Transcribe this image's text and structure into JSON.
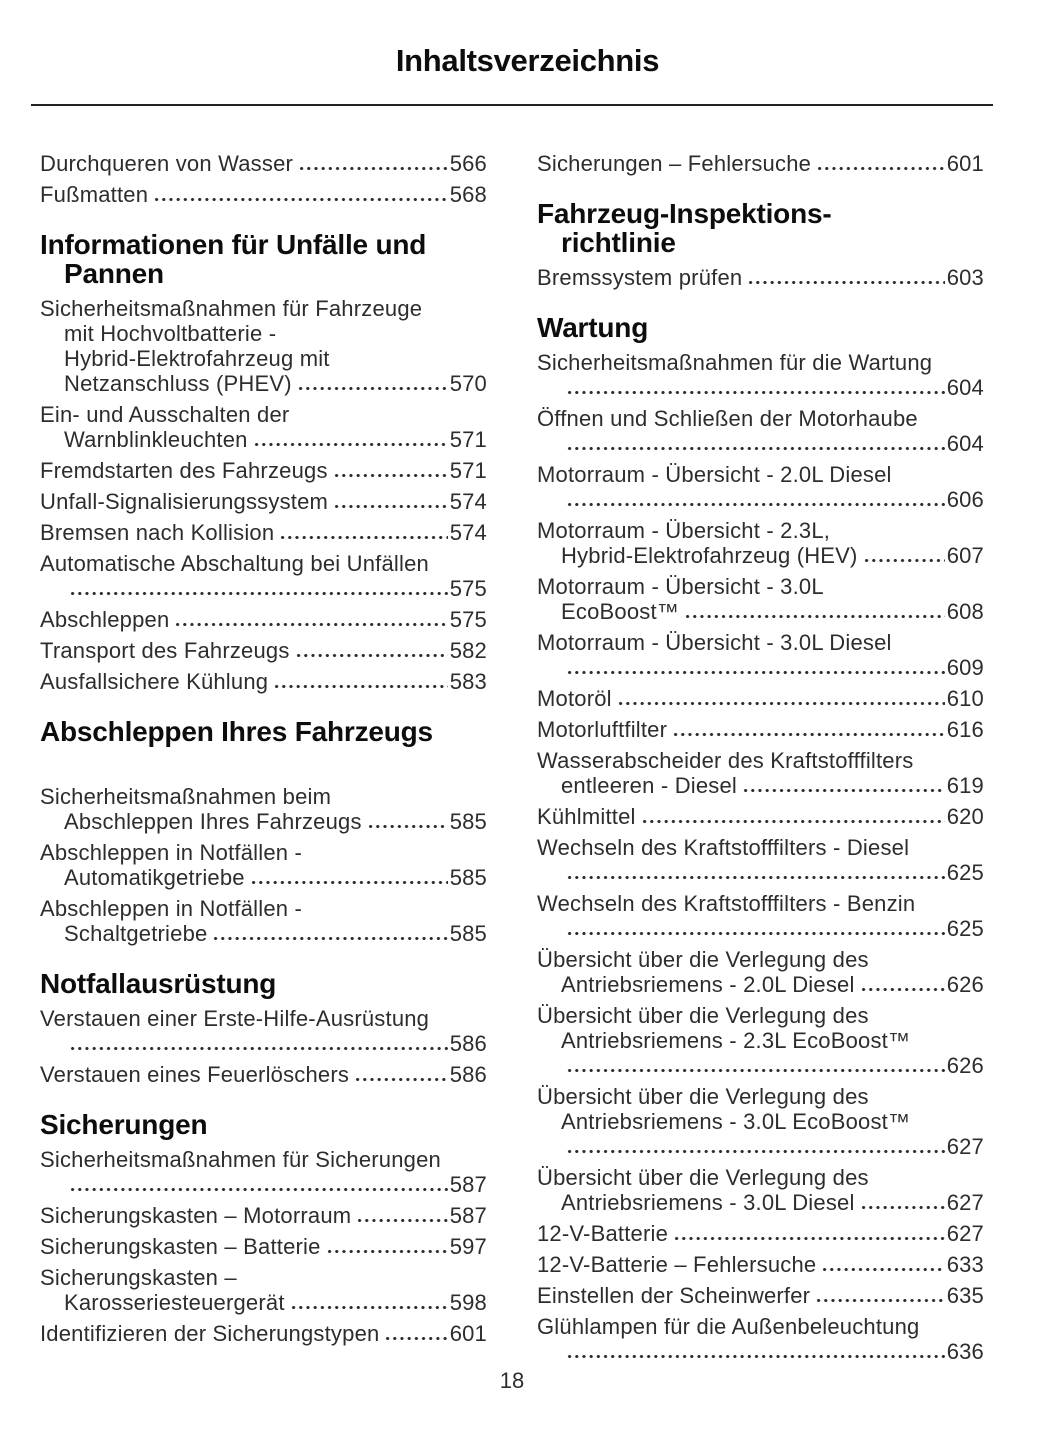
{
  "page": {
    "title": "Inhaltsverzeichnis",
    "page_number": "18"
  },
  "colors": {
    "text": "#2d2d2d",
    "heading": "#0d0d0d",
    "rule": "#222222",
    "background": "#ffffff"
  },
  "columns": {
    "left": [
      {
        "type": "entry",
        "lines": [
          "Durchqueren von Wasser"
        ],
        "page": "566"
      },
      {
        "type": "entry",
        "lines": [
          "Fußmatten"
        ],
        "page": "568"
      },
      {
        "type": "heading",
        "lines": [
          "Informationen für Unfälle und",
          "Pannen"
        ]
      },
      {
        "type": "entry",
        "lines": [
          "Sicherheitsmaßnahmen für Fahrzeuge",
          "mit Hochvoltbatterie -",
          "Hybrid-Elektrofahrzeug mit",
          "Netzanschluss (PHEV)"
        ],
        "page": "570"
      },
      {
        "type": "entry",
        "lines": [
          "Ein- und Ausschalten der",
          "Warnblinkleuchten"
        ],
        "page": "571"
      },
      {
        "type": "entry",
        "lines": [
          "Fremdstarten des Fahrzeugs"
        ],
        "page": "571"
      },
      {
        "type": "entry",
        "lines": [
          "Unfall-Signalisierungssystem"
        ],
        "page": "574"
      },
      {
        "type": "entry",
        "lines": [
          "Bremsen nach Kollision"
        ],
        "page": "574"
      },
      {
        "type": "entry",
        "lines": [
          "Automatische Abschaltung bei Unfällen",
          ""
        ],
        "page": "575"
      },
      {
        "type": "entry",
        "lines": [
          "Abschleppen"
        ],
        "page": "575"
      },
      {
        "type": "entry",
        "lines": [
          "Transport des Fahrzeugs"
        ],
        "page": "582"
      },
      {
        "type": "entry",
        "lines": [
          "Ausfallsichere Kühlung"
        ],
        "page": "583"
      },
      {
        "type": "heading",
        "lines": [
          "Abschleppen Ihres Fahrzeugs"
        ],
        "gap_after": true
      },
      {
        "type": "entry",
        "lines": [
          "Sicherheitsmaßnahmen beim",
          "Abschleppen Ihres Fahrzeugs"
        ],
        "page": "585"
      },
      {
        "type": "entry",
        "lines": [
          "Abschleppen in Notfällen -",
          "Automatikgetriebe"
        ],
        "page": "585"
      },
      {
        "type": "entry",
        "lines": [
          "Abschleppen in Notfällen -",
          "Schaltgetriebe"
        ],
        "page": "585"
      },
      {
        "type": "heading",
        "lines": [
          "Notfallausrüstung"
        ]
      },
      {
        "type": "entry",
        "lines": [
          "Verstauen einer Erste-Hilfe-Ausrüstung",
          ""
        ],
        "page": "586"
      },
      {
        "type": "entry",
        "lines": [
          "Verstauen eines Feuerlöschers"
        ],
        "page": "586"
      },
      {
        "type": "heading",
        "lines": [
          "Sicherungen"
        ]
      },
      {
        "type": "entry",
        "lines": [
          "Sicherheitsmaßnahmen für Sicherungen",
          ""
        ],
        "page": "587"
      },
      {
        "type": "entry",
        "lines": [
          "Sicherungskasten – Motorraum"
        ],
        "page": "587"
      },
      {
        "type": "entry",
        "lines": [
          "Sicherungskasten – Batterie"
        ],
        "page": "597"
      },
      {
        "type": "entry",
        "lines": [
          "Sicherungskasten –",
          "Karosseriesteuergerät"
        ],
        "page": "598"
      },
      {
        "type": "entry",
        "lines": [
          "Identifizieren der Sicherungstypen"
        ],
        "page": "601"
      }
    ],
    "right": [
      {
        "type": "entry",
        "lines": [
          "Sicherungen – Fehlersuche"
        ],
        "page": "601"
      },
      {
        "type": "heading",
        "lines": [
          "Fahrzeug-Inspektions-",
          "richtlinie"
        ]
      },
      {
        "type": "entry",
        "lines": [
          "Bremssystem prüfen"
        ],
        "page": "603"
      },
      {
        "type": "heading",
        "lines": [
          "Wartung"
        ]
      },
      {
        "type": "entry",
        "lines": [
          "Sicherheitsmaßnahmen für die Wartung",
          ""
        ],
        "page": "604"
      },
      {
        "type": "entry",
        "lines": [
          "Öffnen und Schließen der Motorhaube",
          ""
        ],
        "page": "604"
      },
      {
        "type": "entry",
        "lines": [
          "Motorraum - Übersicht - 2.0L Diesel",
          ""
        ],
        "page": "606"
      },
      {
        "type": "entry",
        "lines": [
          "Motorraum - Übersicht - 2.3L,",
          "Hybrid-Elektrofahrzeug (HEV)"
        ],
        "page": "607"
      },
      {
        "type": "entry",
        "lines": [
          "Motorraum - Übersicht - 3.0L",
          "EcoBoost™"
        ],
        "page": "608"
      },
      {
        "type": "entry",
        "lines": [
          "Motorraum - Übersicht - 3.0L Diesel",
          ""
        ],
        "page": "609"
      },
      {
        "type": "entry",
        "lines": [
          "Motoröl"
        ],
        "page": "610"
      },
      {
        "type": "entry",
        "lines": [
          "Motorluftfilter"
        ],
        "page": "616"
      },
      {
        "type": "entry",
        "lines": [
          "Wasserabscheider des Kraftstofffilters",
          "entleeren - Diesel"
        ],
        "page": "619"
      },
      {
        "type": "entry",
        "lines": [
          "Kühlmittel"
        ],
        "page": "620"
      },
      {
        "type": "entry",
        "lines": [
          "Wechseln des Kraftstofffilters - Diesel",
          ""
        ],
        "page": "625"
      },
      {
        "type": "entry",
        "lines": [
          "Wechseln des Kraftstofffilters - Benzin",
          ""
        ],
        "page": "625"
      },
      {
        "type": "entry",
        "lines": [
          "Übersicht über die Verlegung des",
          "Antriebsriemens - 2.0L Diesel"
        ],
        "page": "626"
      },
      {
        "type": "entry",
        "lines": [
          "Übersicht über die Verlegung des",
          "Antriebsriemens - 2.3L EcoBoost™",
          ""
        ],
        "page": "626"
      },
      {
        "type": "entry",
        "lines": [
          "Übersicht über die Verlegung des",
          "Antriebsriemens - 3.0L EcoBoost™",
          ""
        ],
        "page": "627"
      },
      {
        "type": "entry",
        "lines": [
          "Übersicht über die Verlegung des",
          "Antriebsriemens - 3.0L Diesel"
        ],
        "page": "627"
      },
      {
        "type": "entry",
        "lines": [
          "12-V-Batterie"
        ],
        "page": "627"
      },
      {
        "type": "entry",
        "lines": [
          "12-V-Batterie – Fehlersuche"
        ],
        "page": "633"
      },
      {
        "type": "entry",
        "lines": [
          "Einstellen der Scheinwerfer"
        ],
        "page": "635"
      },
      {
        "type": "entry",
        "lines": [
          "Glühlampen für die Außenbeleuchtung",
          ""
        ],
        "page": "636"
      }
    ]
  }
}
